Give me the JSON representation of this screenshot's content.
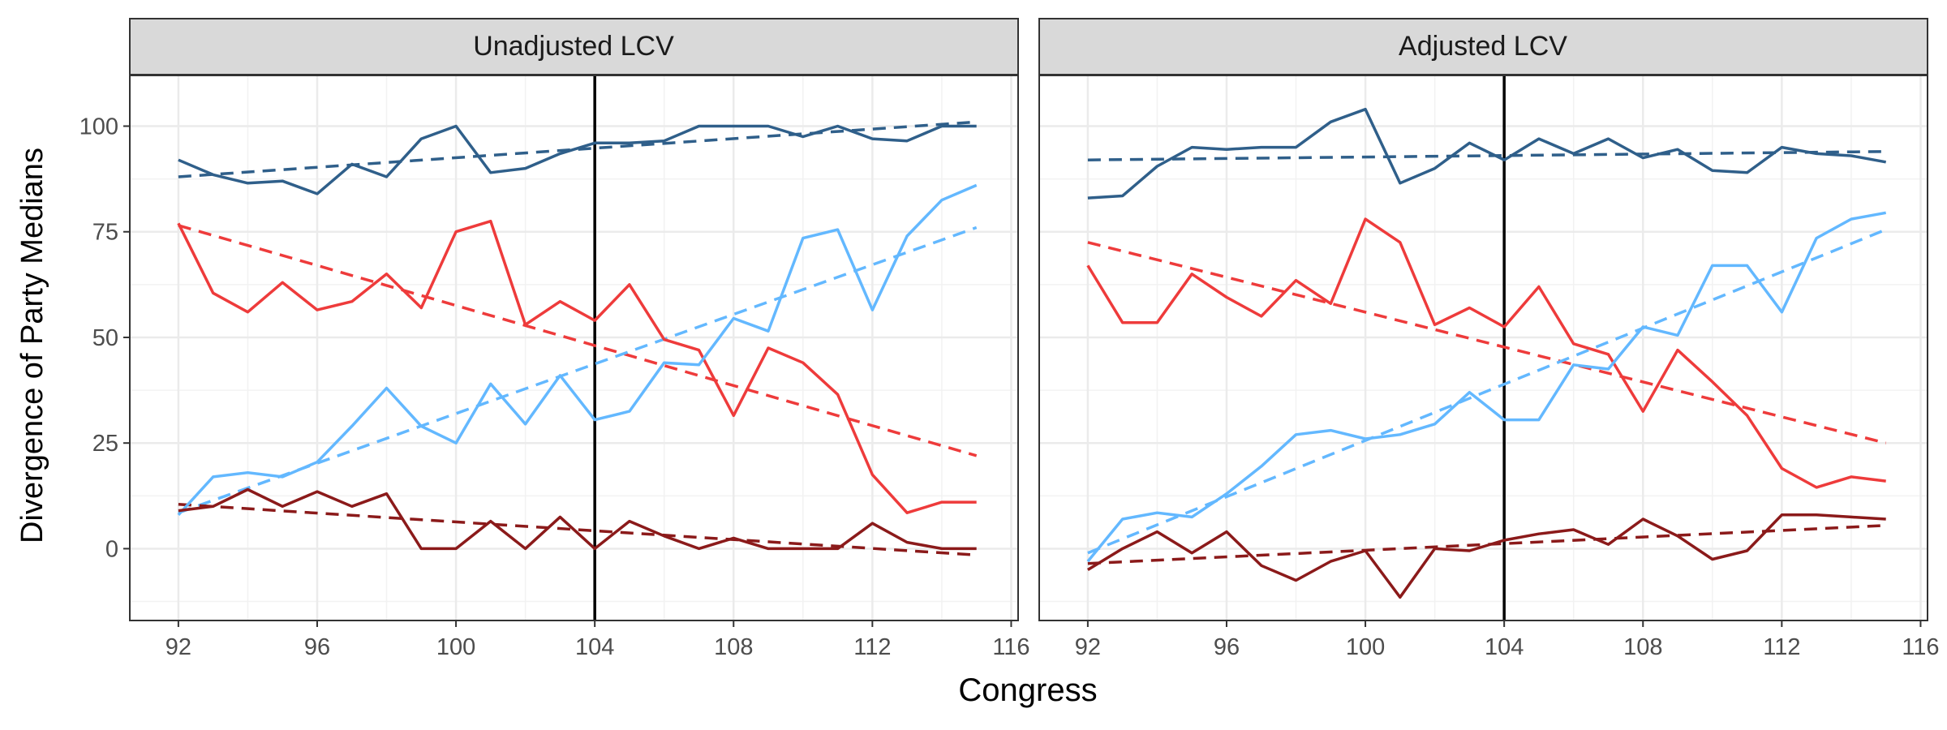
{
  "chart_data": {
    "type": "line",
    "xlabel": "Congress",
    "ylabel": "Divergence of Party Medians",
    "xlim": [
      90.6,
      116.2
    ],
    "ylim": [
      -17,
      112
    ],
    "x_ticks": [
      92,
      96,
      100,
      104,
      108,
      112,
      116
    ],
    "y_ticks": [
      0,
      25,
      50,
      75,
      100
    ],
    "vline_x": 104,
    "grid": true,
    "legend": "none",
    "colors": {
      "darkblue": "#2F5F8A",
      "red": "#EE3B3B",
      "lightblue": "#63B8FF",
      "darkred": "#8B1A1A"
    },
    "panels": [
      {
        "title": "Unadjusted LCV",
        "series": [
          {
            "color": "#2F5F8A",
            "x": [
              92,
              93,
              94,
              95,
              96,
              97,
              98,
              99,
              100,
              101,
              102,
              103,
              104,
              105,
              106,
              107,
              108,
              109,
              110,
              111,
              112,
              113,
              114,
              115
            ],
            "values": [
              92,
              88.5,
              86.5,
              87,
              84,
              91,
              88,
              97,
              100,
              89,
              90,
              93.5,
              96,
              96,
              96.5,
              100,
              100,
              100,
              97.5,
              100,
              97,
              96.5,
              100,
              100
            ]
          },
          {
            "color": "#EE3B3B",
            "x": [
              92,
              93,
              94,
              95,
              96,
              97,
              98,
              99,
              100,
              101,
              102,
              103,
              104,
              105,
              106,
              107,
              108,
              109,
              110,
              111,
              112,
              113,
              114,
              115
            ],
            "values": [
              77,
              60.5,
              56,
              63,
              56.5,
              58.5,
              65,
              57,
              75,
              77.5,
              53,
              58.5,
              54,
              62.5,
              49.5,
              47,
              31.5,
              47.5,
              44,
              36.5,
              17.5,
              8.5,
              11,
              11
            ]
          },
          {
            "color": "#63B8FF",
            "x": [
              92,
              93,
              94,
              95,
              96,
              97,
              98,
              99,
              100,
              101,
              102,
              103,
              104,
              105,
              106,
              107,
              108,
              109,
              110,
              111,
              112,
              113,
              114,
              115
            ],
            "values": [
              8,
              17,
              18,
              17,
              20.5,
              29,
              38,
              29,
              25,
              39,
              29.5,
              41,
              30.5,
              32.5,
              44,
              43.5,
              54.5,
              51.5,
              73.5,
              75.5,
              56.5,
              74,
              82.5,
              86
            ]
          },
          {
            "color": "#8B1A1A",
            "x": [
              92,
              93,
              94,
              95,
              96,
              97,
              98,
              99,
              100,
              101,
              102,
              103,
              104,
              105,
              106,
              107,
              108,
              109,
              110,
              111,
              112,
              113,
              114,
              115
            ],
            "values": [
              9,
              10,
              14,
              10,
              13.5,
              10,
              13,
              0,
              0,
              6.5,
              0,
              7.5,
              0,
              6.5,
              3,
              0,
              2.5,
              0,
              0,
              0,
              6,
              1.5,
              0,
              0
            ]
          }
        ],
        "trends": [
          {
            "color": "#2F5F8A",
            "x": [
              92,
              115
            ],
            "values": [
              88,
              101
            ]
          },
          {
            "color": "#EE3B3B",
            "x": [
              92,
              115
            ],
            "values": [
              76.5,
              22
            ]
          },
          {
            "color": "#63B8FF",
            "x": [
              92,
              115
            ],
            "values": [
              8.5,
              76
            ]
          },
          {
            "color": "#8B1A1A",
            "x": [
              92,
              115
            ],
            "values": [
              10.5,
              -1.5
            ]
          }
        ]
      },
      {
        "title": "Adjusted LCV",
        "series": [
          {
            "color": "#2F5F8A",
            "x": [
              92,
              93,
              94,
              95,
              96,
              97,
              98,
              99,
              100,
              101,
              102,
              103,
              104,
              105,
              106,
              107,
              108,
              109,
              110,
              111,
              112,
              113,
              114,
              115
            ],
            "values": [
              83,
              83.5,
              90.5,
              95,
              94.5,
              95,
              95,
              101,
              104,
              86.5,
              90,
              96,
              92,
              97,
              93.5,
              97,
              92.5,
              94.5,
              89.5,
              89,
              95,
              93.5,
              93,
              91.5
            ]
          },
          {
            "color": "#EE3B3B",
            "x": [
              92,
              93,
              94,
              95,
              96,
              97,
              98,
              99,
              100,
              101,
              102,
              103,
              104,
              105,
              106,
              107,
              108,
              109,
              110,
              111,
              112,
              113,
              114,
              115
            ],
            "values": [
              67,
              53.5,
              53.5,
              65,
              59.5,
              55,
              63.5,
              58,
              78,
              72.5,
              53,
              57,
              52.5,
              62,
              48.5,
              46,
              32.5,
              47,
              39.5,
              31.5,
              19,
              14.5,
              17,
              16
            ]
          },
          {
            "color": "#63B8FF",
            "x": [
              92,
              93,
              94,
              95,
              96,
              97,
              98,
              99,
              100,
              101,
              102,
              103,
              104,
              105,
              106,
              107,
              108,
              109,
              110,
              111,
              112,
              113,
              114,
              115
            ],
            "values": [
              -3,
              7,
              8.5,
              7.5,
              13,
              19.5,
              27,
              28,
              26,
              27,
              29.5,
              37,
              30.5,
              30.5,
              43.5,
              42.5,
              52.5,
              50.5,
              67,
              67,
              56,
              73.5,
              78,
              79.5
            ]
          },
          {
            "color": "#8B1A1A",
            "x": [
              92,
              93,
              94,
              95,
              96,
              97,
              98,
              99,
              100,
              101,
              102,
              103,
              104,
              105,
              106,
              107,
              108,
              109,
              110,
              111,
              112,
              113,
              114,
              115
            ],
            "values": [
              -5,
              0,
              4,
              -1,
              4,
              -4,
              -7.5,
              -3,
              -0.5,
              -11.5,
              0,
              -0.5,
              2,
              3.5,
              4.5,
              1,
              7,
              3,
              -2.5,
              -0.5,
              8,
              8,
              7.5,
              7
            ]
          }
        ],
        "trends": [
          {
            "color": "#2F5F8A",
            "x": [
              92,
              115
            ],
            "values": [
              92,
              94
            ]
          },
          {
            "color": "#EE3B3B",
            "x": [
              92,
              115
            ],
            "values": [
              72.5,
              25
            ]
          },
          {
            "color": "#63B8FF",
            "x": [
              92,
              115
            ],
            "values": [
              -1,
              75.5
            ]
          },
          {
            "color": "#8B1A1A",
            "x": [
              92,
              115
            ],
            "values": [
              -3.5,
              5.5
            ]
          }
        ]
      }
    ]
  }
}
